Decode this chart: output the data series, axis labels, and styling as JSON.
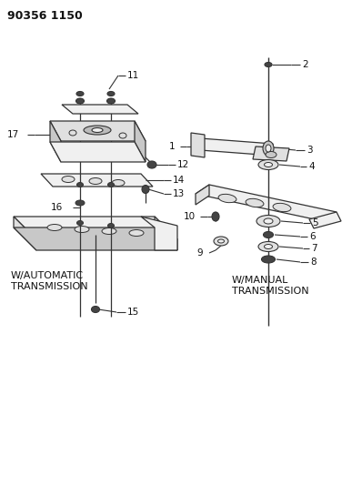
{
  "title": "90356 1150",
  "bg_color": "#ffffff",
  "line_color": "#333333",
  "fill_light": "#f0f0f0",
  "fill_mid": "#e0e0e0",
  "fill_dark": "#c8c8c8",
  "fill_black": "#444444",
  "auto_label": "W/AUTOMATIC\nTRANSMISSION",
  "manual_label": "W/MANUAL\nTRANSMISSION",
  "figsize": [
    3.98,
    5.33
  ],
  "dpi": 100
}
